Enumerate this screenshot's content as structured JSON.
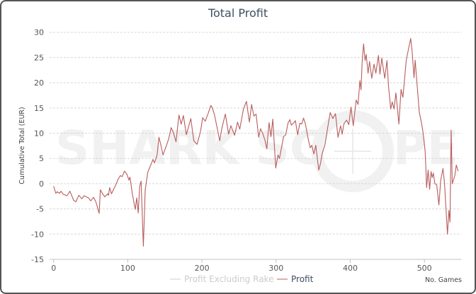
{
  "chart_data": {
    "type": "line",
    "title": "Total Profit",
    "xlabel": "No. Games",
    "ylabel": "Cumulative Total (EUR)",
    "xlim": [
      0,
      550
    ],
    "ylim": [
      -15,
      30
    ],
    "xticks": [
      0,
      100,
      200,
      300,
      400,
      500
    ],
    "yticks": [
      30,
      25,
      20,
      15,
      10,
      5,
      0,
      -5,
      -10,
      -15
    ],
    "grid": true,
    "legend_position": "bottom",
    "watermark": "SHARKSCOPE",
    "colors": {
      "profit": "#b85c5c",
      "profit_excluding_rake": "#cccccc",
      "title": "#3d4f63"
    },
    "series": [
      {
        "name": "Profit Excluding Rake",
        "visible": false,
        "points": []
      },
      {
        "name": "Profit",
        "visible": true,
        "points": [
          [
            0,
            -0.5
          ],
          [
            3,
            -1.9
          ],
          [
            5,
            -1.6
          ],
          [
            8,
            -1.9
          ],
          [
            10,
            -1.5
          ],
          [
            13,
            -2.1
          ],
          [
            18,
            -2.4
          ],
          [
            22,
            -1.5
          ],
          [
            27,
            -3.3
          ],
          [
            30,
            -3.6
          ],
          [
            34,
            -2.3
          ],
          [
            38,
            -3.0
          ],
          [
            41,
            -2.4
          ],
          [
            47,
            -2.8
          ],
          [
            50,
            -3.4
          ],
          [
            54,
            -2.7
          ],
          [
            57,
            -3.6
          ],
          [
            61.4,
            -5.9
          ],
          [
            63,
            -1.2
          ],
          [
            66,
            -2.0
          ],
          [
            69,
            -2.6
          ],
          [
            73,
            -2.0
          ],
          [
            74,
            -2.3
          ],
          [
            75.5,
            -0.8
          ],
          [
            78,
            -2.0
          ],
          [
            80,
            -1.4
          ],
          [
            84,
            -0.2
          ],
          [
            87,
            0.9
          ],
          [
            90,
            1.6
          ],
          [
            92.5,
            1.4
          ],
          [
            95.5,
            2.5
          ],
          [
            99,
            1.8
          ],
          [
            101.5,
            0.7
          ],
          [
            103,
            1.3
          ],
          [
            106,
            -1.9
          ],
          [
            110,
            -5.1
          ],
          [
            112,
            -2.8
          ],
          [
            114,
            -5.8
          ],
          [
            116,
            -0.5
          ],
          [
            118,
            0.5
          ],
          [
            121,
            -12.4
          ],
          [
            123.5,
            -1.2
          ],
          [
            127,
            2.3
          ],
          [
            131.5,
            3.9
          ],
          [
            134,
            4.8
          ],
          [
            136,
            4.1
          ],
          [
            139.5,
            5.7
          ],
          [
            142,
            9.2
          ],
          [
            144,
            8.0
          ],
          [
            147.5,
            5.7
          ],
          [
            150.5,
            6.9
          ],
          [
            155,
            8.8
          ],
          [
            158.5,
            11.1
          ],
          [
            161.5,
            10.1
          ],
          [
            165,
            8.3
          ],
          [
            169,
            13.6
          ],
          [
            172,
            11.8
          ],
          [
            175,
            13.5
          ],
          [
            179,
            9.7
          ],
          [
            185,
            12.9
          ],
          [
            189,
            8.5
          ],
          [
            193.5,
            7.8
          ],
          [
            198,
            10.3
          ],
          [
            201,
            13.1
          ],
          [
            204.5,
            12.4
          ],
          [
            208,
            13.8
          ],
          [
            212,
            15.5
          ],
          [
            214,
            15.0
          ],
          [
            217,
            13.6
          ],
          [
            224,
            8.5
          ],
          [
            227,
            11.1
          ],
          [
            231.5,
            13.8
          ],
          [
            236,
            9.8
          ],
          [
            239,
            11.5
          ],
          [
            244,
            9.6
          ],
          [
            248,
            12.2
          ],
          [
            251,
            10.8
          ],
          [
            256,
            14.8
          ],
          [
            260,
            16.3
          ],
          [
            264,
            12.2
          ],
          [
            267,
            15.7
          ],
          [
            270,
            13.4
          ],
          [
            273,
            13.8
          ],
          [
            276.5,
            9.2
          ],
          [
            279,
            10.9
          ],
          [
            282,
            9.9
          ],
          [
            285,
            8.6
          ],
          [
            287.5,
            6.9
          ],
          [
            290.5,
            12.1
          ],
          [
            293,
            9.3
          ],
          [
            295.5,
            12.8
          ],
          [
            299.5,
            3.1
          ],
          [
            302.5,
            5.7
          ],
          [
            304.5,
            5.0
          ],
          [
            307,
            6.9
          ],
          [
            310,
            9.3
          ],
          [
            313,
            9.7
          ],
          [
            316,
            12.0
          ],
          [
            318.5,
            12.7
          ],
          [
            320.5,
            11.6
          ],
          [
            324,
            12.1
          ],
          [
            326,
            12.5
          ],
          [
            329,
            9.7
          ],
          [
            332,
            12.0
          ],
          [
            334.5,
            11.8
          ],
          [
            337,
            13.0
          ],
          [
            339.5,
            11.8
          ],
          [
            343.5,
            8.7
          ],
          [
            346,
            7.1
          ],
          [
            348,
            7.6
          ],
          [
            351,
            5.9
          ],
          [
            353.5,
            7.6
          ],
          [
            357.5,
            2.7
          ],
          [
            360,
            4.1
          ],
          [
            362,
            5.9
          ],
          [
            366,
            7.8
          ],
          [
            369,
            10.6
          ],
          [
            373,
            14.1
          ],
          [
            376.5,
            12.9
          ],
          [
            380,
            13.9
          ],
          [
            383.5,
            9.2
          ],
          [
            387,
            11.5
          ],
          [
            389,
            9.8
          ],
          [
            391.5,
            11.9
          ],
          [
            395,
            12.6
          ],
          [
            398,
            11.7
          ],
          [
            401,
            15.2
          ],
          [
            404,
            11.5
          ],
          [
            408,
            16.6
          ],
          [
            410.5,
            15.7
          ],
          [
            413,
            20.4
          ],
          [
            414.5,
            18.6
          ],
          [
            416,
            24.2
          ],
          [
            418,
            27.7
          ],
          [
            420,
            24.4
          ],
          [
            421.5,
            25.6
          ],
          [
            424,
            21.9
          ],
          [
            426,
            24.2
          ],
          [
            429,
            20.9
          ],
          [
            432,
            23.7
          ],
          [
            434.5,
            21.9
          ],
          [
            438,
            25.4
          ],
          [
            440,
            21.7
          ],
          [
            442.5,
            24.9
          ],
          [
            444,
            23.3
          ],
          [
            446.5,
            20.9
          ],
          [
            449.5,
            24.4
          ],
          [
            451.5,
            19.5
          ],
          [
            454.5,
            14.8
          ],
          [
            456.5,
            16.2
          ],
          [
            459,
            14.8
          ],
          [
            461.5,
            18.0
          ],
          [
            464,
            14.3
          ],
          [
            465.5,
            11.8
          ],
          [
            468.5,
            18.7
          ],
          [
            471,
            17.1
          ],
          [
            475.5,
            24.4
          ],
          [
            478.5,
            26.7
          ],
          [
            481.5,
            28.8
          ],
          [
            483.5,
            26.1
          ],
          [
            486,
            21.0
          ],
          [
            487.5,
            24.5
          ],
          [
            493,
            14.2
          ],
          [
            496,
            12.1
          ],
          [
            498,
            10.3
          ],
          [
            501,
            6.5
          ],
          [
            503,
            -0.8
          ],
          [
            505,
            2.7
          ],
          [
            507,
            -1.1
          ],
          [
            509,
            2.4
          ],
          [
            510.5,
            1.2
          ],
          [
            512,
            2.1
          ],
          [
            514,
            0.0
          ],
          [
            516.5,
            -0.2
          ],
          [
            519.5,
            -4.2
          ],
          [
            522,
            0.7
          ],
          [
            525,
            3.0
          ],
          [
            527,
            0.2
          ],
          [
            531,
            -10.0
          ],
          [
            533,
            -5.3
          ],
          [
            534.5,
            -7.6
          ],
          [
            536,
            10.6
          ],
          [
            537.5,
            0.0
          ],
          [
            541,
            1.6
          ],
          [
            543,
            3.7
          ],
          [
            545.5,
            2.5
          ]
        ]
      }
    ]
  }
}
